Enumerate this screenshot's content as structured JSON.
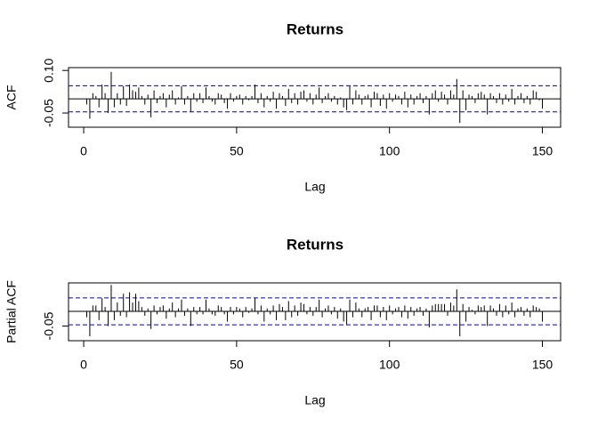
{
  "chart_data": [
    {
      "type": "acf",
      "title": "Returns",
      "x_label": "Lag",
      "y_label": "ACF",
      "color": "#000000",
      "ci_color": "#0000cc",
      "x": [
        1,
        2,
        3,
        4,
        5,
        6,
        7,
        8,
        9,
        10,
        11,
        12,
        13,
        14,
        15,
        16,
        17,
        18,
        19,
        20,
        21,
        22,
        23,
        24,
        25,
        26,
        27,
        28,
        29,
        30,
        31,
        32,
        33,
        34,
        35,
        36,
        37,
        38,
        39,
        40,
        41,
        42,
        43,
        44,
        45,
        46,
        47,
        48,
        49,
        50,
        51,
        52,
        53,
        54,
        55,
        56,
        57,
        58,
        59,
        60,
        61,
        62,
        63,
        64,
        65,
        66,
        67,
        68,
        69,
        70,
        71,
        72,
        73,
        74,
        75,
        76,
        77,
        78,
        79,
        80,
        81,
        82,
        83,
        84,
        85,
        86,
        87,
        88,
        89,
        90,
        91,
        92,
        93,
        94,
        95,
        96,
        97,
        98,
        99,
        100,
        101,
        102,
        103,
        104,
        105,
        106,
        107,
        108,
        109,
        110,
        111,
        112,
        113,
        114,
        115,
        116,
        117,
        118,
        119,
        120,
        121,
        122,
        123,
        124,
        125,
        126,
        127,
        128,
        129,
        130,
        131,
        132,
        133,
        134,
        135,
        136,
        137,
        138,
        139,
        140,
        141,
        142,
        143,
        144,
        145,
        146,
        147,
        148,
        149,
        150
      ],
      "values": [
        -0.02,
        -0.07,
        0.02,
        0.01,
        -0.03,
        0.05,
        0.02,
        -0.05,
        0.095,
        -0.03,
        0.02,
        -0.02,
        0.045,
        -0.025,
        0.05,
        0.03,
        0.025,
        0.04,
        0.01,
        -0.02,
        0.015,
        -0.065,
        0.03,
        -0.015,
        0.01,
        0.02,
        -0.03,
        0.015,
        0.03,
        -0.02,
        0.005,
        0.045,
        -0.02,
        0.01,
        -0.045,
        0.02,
        -0.01,
        0.02,
        -0.015,
        0.04,
        0.01,
        -0.01,
        -0.02,
        0.02,
        0.015,
        -0.015,
        -0.035,
        0.02,
        -0.01,
        0.01,
        0.015,
        -0.02,
        0.01,
        -0.005,
        0.01,
        0.05,
        -0.015,
        0.02,
        -0.03,
        0.01,
        -0.01,
        0.025,
        -0.035,
        0.02,
        0.01,
        -0.025,
        0.035,
        -0.015,
        0.02,
        -0.02,
        0.025,
        0.03,
        -0.01,
        0.02,
        -0.02,
        0.015,
        0.04,
        -0.015,
        0.01,
        0.02,
        -0.01,
        0.01,
        -0.02,
        0.005,
        -0.03,
        -0.04,
        0.045,
        -0.02,
        0.03,
        0.015,
        -0.02,
        0.01,
        0.015,
        -0.03,
        0.025,
        0.02,
        -0.025,
        0.015,
        -0.035,
        0.02,
        -0.01,
        0.015,
        0.01,
        -0.02,
        0.025,
        -0.03,
        0.015,
        -0.02,
        0.01,
        0.02,
        -0.015,
        0.01,
        -0.055,
        0.02,
        0.03,
        -0.01,
        0.025,
        0.015,
        -0.02,
        0.03,
        0.015,
        0.07,
        -0.085,
        0.03,
        -0.04,
        0.015,
        0.01,
        -0.015,
        0.02,
        0.025,
        0.015,
        -0.055,
        0.02,
        0.01,
        -0.015,
        0.02,
        -0.02,
        0.015,
        -0.01,
        0.035,
        -0.02,
        0.01,
        0.02,
        -0.015,
        0.01,
        -0.02,
        0.03,
        0.025,
        -0.005,
        -0.035
      ],
      "ci_lines": [
        0.046,
        -0.046
      ],
      "xlim": [
        -4.96,
        155.96
      ],
      "xticks": [
        0,
        50,
        100,
        150
      ],
      "ylim": [
        -0.1,
        0.11
      ],
      "yticks": [
        {
          "value": 0.1,
          "label": "0.10"
        },
        -0.05
      ]
    },
    {
      "type": "acf",
      "title": "Returns",
      "x_label": "Lag",
      "y_label": "Partial ACF",
      "color": "#000000",
      "ci_color": "#0000cc",
      "x": [
        1,
        2,
        3,
        4,
        5,
        6,
        7,
        8,
        9,
        10,
        11,
        12,
        13,
        14,
        15,
        16,
        17,
        18,
        19,
        20,
        21,
        22,
        23,
        24,
        25,
        26,
        27,
        28,
        29,
        30,
        31,
        32,
        33,
        34,
        35,
        36,
        37,
        38,
        39,
        40,
        41,
        42,
        43,
        44,
        45,
        46,
        47,
        48,
        49,
        50,
        51,
        52,
        53,
        54,
        55,
        56,
        57,
        58,
        59,
        60,
        61,
        62,
        63,
        64,
        65,
        66,
        67,
        68,
        69,
        70,
        71,
        72,
        73,
        74,
        75,
        76,
        77,
        78,
        79,
        80,
        81,
        82,
        83,
        84,
        85,
        86,
        87,
        88,
        89,
        90,
        91,
        92,
        93,
        94,
        95,
        96,
        97,
        98,
        99,
        100,
        101,
        102,
        103,
        104,
        105,
        106,
        107,
        108,
        109,
        110,
        111,
        112,
        113,
        114,
        115,
        116,
        117,
        118,
        119,
        120,
        121,
        122,
        123,
        124,
        125,
        126,
        127,
        128,
        129,
        130,
        131,
        132,
        133,
        134,
        135,
        136,
        137,
        138,
        139,
        140,
        141,
        142,
        143,
        144,
        145,
        146,
        147,
        148,
        149,
        150
      ],
      "values": [
        -0.02,
        -0.085,
        0.02,
        0.02,
        -0.03,
        0.045,
        0.015,
        -0.05,
        0.09,
        -0.03,
        0.03,
        -0.015,
        0.06,
        -0.02,
        0.065,
        0.03,
        0.06,
        0.035,
        0.015,
        -0.015,
        0.01,
        -0.06,
        0.02,
        -0.01,
        0.015,
        0.02,
        -0.025,
        0.01,
        0.03,
        -0.02,
        0.01,
        0.04,
        -0.015,
        0.01,
        -0.05,
        0.015,
        -0.01,
        0.015,
        -0.01,
        0.04,
        0.01,
        -0.01,
        -0.015,
        0.02,
        0.015,
        -0.01,
        -0.035,
        0.015,
        -0.01,
        0.015,
        0.01,
        -0.02,
        0.015,
        -0.005,
        0.01,
        0.045,
        -0.01,
        0.02,
        -0.035,
        0.01,
        -0.01,
        0.02,
        -0.03,
        0.025,
        0.015,
        -0.03,
        0.035,
        -0.02,
        0.02,
        -0.015,
        0.03,
        0.025,
        -0.01,
        0.015,
        -0.015,
        0.015,
        0.04,
        -0.02,
        0.01,
        0.02,
        -0.01,
        0.015,
        -0.025,
        0.01,
        -0.035,
        -0.045,
        0.04,
        -0.02,
        0.03,
        0.01,
        -0.02,
        0.01,
        0.015,
        -0.03,
        0.02,
        0.02,
        -0.02,
        0.015,
        -0.03,
        0.02,
        -0.01,
        0.01,
        0.015,
        -0.02,
        0.02,
        -0.025,
        0.015,
        -0.015,
        0.01,
        0.015,
        -0.015,
        0.01,
        -0.055,
        0.02,
        0.025,
        0.025,
        0.025,
        0.025,
        -0.015,
        0.03,
        0.02,
        0.075,
        -0.085,
        0.025,
        -0.035,
        0.015,
        0.005,
        -0.01,
        0.02,
        0.015,
        0.02,
        -0.05,
        0.02,
        0.01,
        -0.015,
        0.025,
        -0.02,
        0.02,
        -0.01,
        0.03,
        -0.02,
        0.01,
        0.015,
        -0.015,
        0.01,
        -0.02,
        0.02,
        0.015,
        0.01,
        -0.035
      ],
      "ci_lines": [
        0.046,
        -0.046
      ],
      "xlim": [
        -4.96,
        155.96
      ],
      "xticks": [
        0,
        50,
        100,
        150
      ],
      "ylim": [
        -0.1,
        0.097
      ],
      "yticks": [
        -0.05
      ]
    }
  ]
}
